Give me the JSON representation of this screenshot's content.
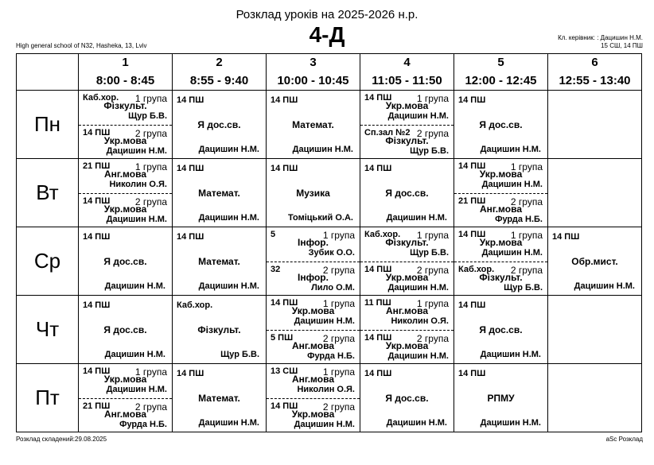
{
  "header": {
    "title": "Розклад уроків на 2025-2026 н.р.",
    "class_name": "4-Д",
    "school": "High general school of N32, Hasheka, 13, Lviv",
    "class_teacher": "Кл. керівник: : Дацишин Н.М.",
    "rooms": "15 СШ, 14 ПШ"
  },
  "footer": {
    "created": "Розклад складений:29.08.2025",
    "app": "aSc Розклад"
  },
  "periods": [
    {
      "num": "1",
      "time": "8:00 - 8:45"
    },
    {
      "num": "2",
      "time": "8:55 - 9:40"
    },
    {
      "num": "3",
      "time": "10:00 - 10:45"
    },
    {
      "num": "4",
      "time": "11:05 - 11:50"
    },
    {
      "num": "5",
      "time": "12:00 - 12:45"
    },
    {
      "num": "6",
      "time": "12:55 - 13:40"
    }
  ],
  "days": [
    {
      "name": "Пн",
      "cells": [
        {
          "groups": [
            {
              "room": "Каб.хор.",
              "group": "1 група",
              "subject": "Фізкульт.",
              "teacher": "Щур Б.В."
            },
            {
              "room": "14 ПШ",
              "group": "2 група",
              "subject": "Укр.мова",
              "teacher": "Дацишин Н.М."
            }
          ]
        },
        {
          "room": "14 ПШ",
          "subject": "Я дос.св.",
          "teacher": "Дацишин Н.М."
        },
        {
          "room": "14 ПШ",
          "subject": "Математ.",
          "teacher": "Дацишин Н.М."
        },
        {
          "groups": [
            {
              "room": "14 ПШ",
              "group": "1 група",
              "subject": "Укр.мова",
              "teacher": "Дацишин Н.М."
            },
            {
              "room": "Сп.зал №2",
              "group": "2 група",
              "subject": "Фізкульт.",
              "teacher": "Щур Б.В."
            }
          ]
        },
        {
          "room": "14 ПШ",
          "subject": "Я дос.св.",
          "teacher": "Дацишин Н.М."
        },
        null
      ]
    },
    {
      "name": "Вт",
      "cells": [
        {
          "groups": [
            {
              "room": "21 ПШ",
              "group": "1 група",
              "subject": "Анг.мова",
              "teacher": "Николин О.Я."
            },
            {
              "room": "14 ПШ",
              "group": "2 група",
              "subject": "Укр.мова",
              "teacher": "Дацишин Н.М."
            }
          ]
        },
        {
          "room": "14 ПШ",
          "subject": "Математ.",
          "teacher": "Дацишин Н.М."
        },
        {
          "room": "14 ПШ",
          "subject": "Музика",
          "teacher": "Томіцький О.А."
        },
        {
          "room": "14 ПШ",
          "subject": "Я дос.св.",
          "teacher": "Дацишин Н.М."
        },
        {
          "groups": [
            {
              "room": "14 ПШ",
              "group": "1 група",
              "subject": "Укр.мова",
              "teacher": "Дацишин Н.М."
            },
            {
              "room": "21 ПШ",
              "group": "2 група",
              "subject": "Анг.мова",
              "teacher": "Фурда Н.Б."
            }
          ]
        },
        null
      ]
    },
    {
      "name": "Ср",
      "cells": [
        {
          "room": "14 ПШ",
          "subject": "Я дос.св.",
          "teacher": "Дацишин Н.М."
        },
        {
          "room": "14 ПШ",
          "subject": "Математ.",
          "teacher": "Дацишин Н.М."
        },
        {
          "groups": [
            {
              "room": "5",
              "group": "1 група",
              "subject": "Інфор.",
              "teacher": "Зубик О.О."
            },
            {
              "room": "32",
              "group": "2 група",
              "subject": "Інфор.",
              "teacher": "Лило О.М."
            }
          ]
        },
        {
          "groups": [
            {
              "room": "Каб.хор.",
              "group": "1 група",
              "subject": "Фізкульт.",
              "teacher": "Щур Б.В."
            },
            {
              "room": "14 ПШ",
              "group": "2 група",
              "subject": "Укр.мова",
              "teacher": "Дацишин Н.М."
            }
          ]
        },
        {
          "groups": [
            {
              "room": "14 ПШ",
              "group": "1 група",
              "subject": "Укр.мова",
              "teacher": "Дацишин Н.М."
            },
            {
              "room": "Каб.хор.",
              "group": "2 група",
              "subject": "Фізкульт.",
              "teacher": "Щур Б.В."
            }
          ]
        },
        {
          "room": "14 ПШ",
          "subject": "Обр.мист.",
          "teacher": "Дацишин Н.М."
        }
      ]
    },
    {
      "name": "Чт",
      "cells": [
        {
          "room": "14 ПШ",
          "subject": "Я дос.св.",
          "teacher": "Дацишин Н.М."
        },
        {
          "room": "Каб.хор.",
          "subject": "Фізкульт.",
          "teacher": "Щур Б.В."
        },
        {
          "groups": [
            {
              "room": "14 ПШ",
              "group": "1 група",
              "subject": "Укр.мова",
              "teacher": "Дацишин Н.М."
            },
            {
              "room": "5 ПШ",
              "group": "2 група",
              "subject": "Анг.мова",
              "teacher": "Фурда Н.Б."
            }
          ]
        },
        {
          "groups": [
            {
              "room": "11 ПШ",
              "group": "1 група",
              "subject": "Анг.мова",
              "teacher": "Николин О.Я."
            },
            {
              "room": "14 ПШ",
              "group": "2 група",
              "subject": "Укр.мова",
              "teacher": "Дацишин Н.М."
            }
          ]
        },
        {
          "room": "14 ПШ",
          "subject": "Я дос.св.",
          "teacher": "Дацишин Н.М."
        },
        null
      ]
    },
    {
      "name": "Пт",
      "cells": [
        {
          "groups": [
            {
              "room": "14 ПШ",
              "group": "1 група",
              "subject": "Укр.мова",
              "teacher": "Дацишин Н.М."
            },
            {
              "room": "21 ПШ",
              "group": "2 група",
              "subject": "Анг.мова",
              "teacher": "Фурда Н.Б."
            }
          ]
        },
        {
          "room": "14 ПШ",
          "subject": "Математ.",
          "teacher": "Дацишин Н.М."
        },
        {
          "groups": [
            {
              "room": "13 СШ",
              "group": "1 група",
              "subject": "Анг.мова",
              "teacher": "Николин О.Я."
            },
            {
              "room": "14 ПШ",
              "group": "2 група",
              "subject": "Укр.мова",
              "teacher": "Дацишин Н.М."
            }
          ]
        },
        {
          "room": "14 ПШ",
          "subject": "Я дос.св.",
          "teacher": "Дацишин Н.М."
        },
        {
          "room": "14 ПШ",
          "subject": "РПМУ",
          "teacher": "Дацишин Н.М."
        },
        null
      ]
    }
  ]
}
